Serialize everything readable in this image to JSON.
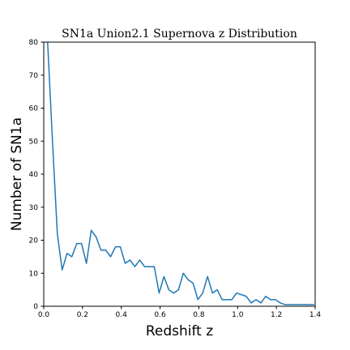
{
  "chart_data": {
    "type": "line",
    "title": "SN1a Union2.1 Supernova z Distribution",
    "xlabel": "Redshift z",
    "ylabel": "Number of SN1a",
    "xlim": [
      0,
      1.4
    ],
    "ylim": [
      0,
      80
    ],
    "x_ticks": [
      "0.0",
      "0.2",
      "0.4",
      "0.6",
      "0.8",
      "1.0",
      "1.2",
      "1.4"
    ],
    "y_ticks": [
      "0",
      "10",
      "20",
      "30",
      "40",
      "50",
      "60",
      "70",
      "80"
    ],
    "grid": false,
    "legend": "none",
    "series": [
      {
        "color": "#1f77b4",
        "x": [
          0.02,
          0.045,
          0.07,
          0.095,
          0.12,
          0.145,
          0.17,
          0.195,
          0.22,
          0.245,
          0.27,
          0.295,
          0.32,
          0.345,
          0.37,
          0.395,
          0.42,
          0.445,
          0.47,
          0.495,
          0.52,
          0.545,
          0.57,
          0.595,
          0.62,
          0.645,
          0.67,
          0.695,
          0.72,
          0.745,
          0.77,
          0.795,
          0.82,
          0.845,
          0.87,
          0.895,
          0.92,
          0.945,
          0.97,
          0.995,
          1.02,
          1.045,
          1.07,
          1.095,
          1.12,
          1.145,
          1.17,
          1.195,
          1.22,
          1.245,
          1.27,
          1.295,
          1.32,
          1.345,
          1.37,
          1.395
        ],
        "values": [
          80,
          50,
          22,
          11,
          16,
          15,
          19,
          19,
          13,
          23,
          21,
          17,
          17,
          15,
          18,
          18,
          13,
          14,
          12,
          14,
          12,
          12,
          12,
          4,
          9,
          5,
          4,
          5,
          10,
          8,
          7,
          2,
          4,
          9,
          4,
          5,
          2,
          2,
          2,
          4,
          3.5,
          3,
          1,
          2,
          1,
          3,
          2,
          2,
          1,
          0.5,
          0.5,
          0.5,
          0.5,
          0.5,
          0.5,
          0.5
        ]
      }
    ]
  }
}
